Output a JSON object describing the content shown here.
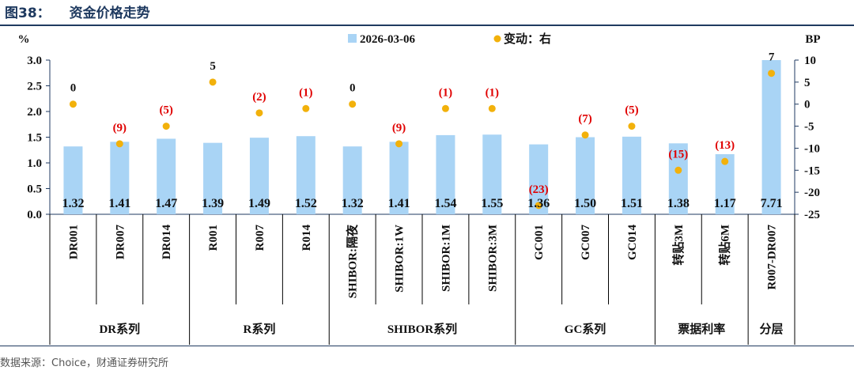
{
  "figure": {
    "number": "图38：",
    "title": "资金价格走势",
    "source": "数据来源：Choice，财通证券研究所"
  },
  "chart_data": {
    "type": "bar",
    "left_unit": "%",
    "right_unit": "BP",
    "legend": {
      "bar": "2026-03-06",
      "dot": "变动：右"
    },
    "categories": [
      "DR001",
      "DR007",
      "DR014",
      "R001",
      "R007",
      "R014",
      "SHIBOR:隔夜",
      "SHIBOR:1W",
      "SHIBOR:1M",
      "SHIBOR:3M",
      "GC001",
      "GC007",
      "GC014",
      "转贴3M",
      "转贴6M",
      "R007-DR007"
    ],
    "values": [
      1.32,
      1.41,
      1.47,
      1.39,
      1.49,
      1.52,
      1.32,
      1.41,
      1.54,
      1.55,
      1.36,
      1.5,
      1.51,
      1.38,
      1.17,
      7.71
    ],
    "value_labels": [
      "1.32",
      "1.41",
      "1.47",
      "1.39",
      "1.49",
      "1.52",
      "1.32",
      "1.41",
      "1.54",
      "1.55",
      "1.36",
      "1.50",
      "1.51",
      "1.38",
      "1.17",
      "7.71"
    ],
    "changes": [
      0,
      -9,
      -5,
      5,
      -2,
      -1,
      0,
      -9,
      -1,
      -1,
      -23,
      -7,
      -5,
      -15,
      -13,
      7
    ],
    "change_labels": [
      "0",
      "(9)",
      "(5)",
      "5",
      "(2)",
      "(1)",
      "0",
      "(9)",
      "(1)",
      "(1)",
      "(23)",
      "(7)",
      "(5)",
      "(15)",
      "(13)",
      "7"
    ],
    "left_axis": {
      "min": 0,
      "max": 3.0,
      "ticks": [
        0.0,
        0.5,
        1.0,
        1.5,
        2.0,
        2.5,
        3.0
      ],
      "tick_labels": [
        "0.0",
        "0.5",
        "1.0",
        "1.5",
        "2.0",
        "2.5",
        "3.0"
      ]
    },
    "right_axis": {
      "min": -25,
      "max": 10,
      "ticks": [
        -25,
        -20,
        -15,
        -10,
        -5,
        0,
        5,
        10
      ],
      "tick_labels": [
        "-25",
        "-20",
        "-15",
        "-10",
        "-5",
        "0",
        "5",
        "10"
      ]
    },
    "groups": [
      {
        "label": "DR系列",
        "count": 3
      },
      {
        "label": "R系列",
        "count": 3
      },
      {
        "label": "SHIBOR系列",
        "count": 4
      },
      {
        "label": "GC系列",
        "count": 3
      },
      {
        "label": "票据利率",
        "count": 2
      },
      {
        "label": "分层",
        "count": 1
      }
    ],
    "colors": {
      "bar": "#a9d4f5",
      "dot": "#f2b10b",
      "negative": "#e00000",
      "positive": "#111111",
      "axis": "#1f3a60"
    }
  }
}
